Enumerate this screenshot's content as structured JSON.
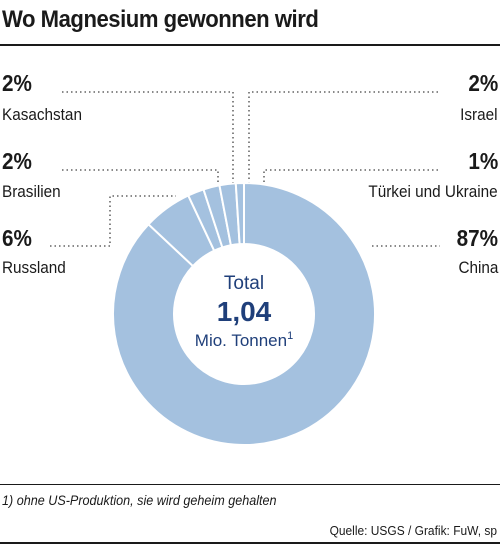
{
  "title": "Wo Magnesium gewonnen wird",
  "chart_data": {
    "type": "pie",
    "donut": true,
    "center": {
      "line1": "Total",
      "value": "1,04",
      "line3": "Mio. Tonnen",
      "footnote_mark": "1"
    },
    "slices": [
      {
        "label": "China",
        "pct_label": "87%",
        "value": 87
      },
      {
        "label": "Russland",
        "pct_label": "6%",
        "value": 6
      },
      {
        "label": "Brasilien",
        "pct_label": "2%",
        "value": 2
      },
      {
        "label": "Kasachstan",
        "pct_label": "2%",
        "value": 2
      },
      {
        "label": "Israel",
        "pct_label": "2%",
        "value": 2
      },
      {
        "label": "Türkei und Ukraine",
        "pct_label": "1%",
        "value": 1
      }
    ],
    "colors": {
      "slice": "#a4c1df",
      "separator": "#ffffff",
      "center_value": "#1f3f7a"
    }
  },
  "footnote": "1) ohne US-Produktion, sie wird geheim gehalten",
  "source": "Quelle: USGS / Grafik: FuW, sp"
}
